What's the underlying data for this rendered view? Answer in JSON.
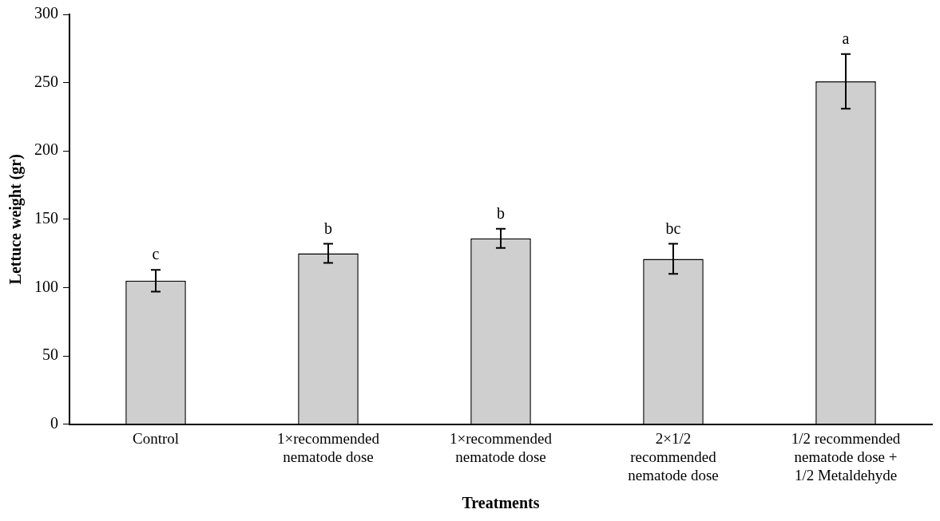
{
  "chart_data": {
    "type": "bar",
    "xlabel": "Treatments",
    "ylabel": "Lettuce weight (gr)",
    "categories": [
      "Control",
      "1×recommended\nnematode dose",
      "1×recommended\nnematode dose",
      "2×1/2\nrecommended\nnematode dose",
      "1/2 recommended\nnematode dose +\n1/2 Metaldehyde"
    ],
    "values": [
      105,
      125,
      136,
      121,
      251
    ],
    "color": "#d0cfcf",
    "errors": [
      8,
      7,
      7,
      11,
      20
    ],
    "value_labels": [
      "c",
      "b",
      "b",
      "bc",
      "a"
    ],
    "ylim": [
      0,
      300
    ],
    "yticks": [
      0,
      50,
      100,
      150,
      200,
      250,
      300
    ],
    "grid": false,
    "legend": false
  }
}
